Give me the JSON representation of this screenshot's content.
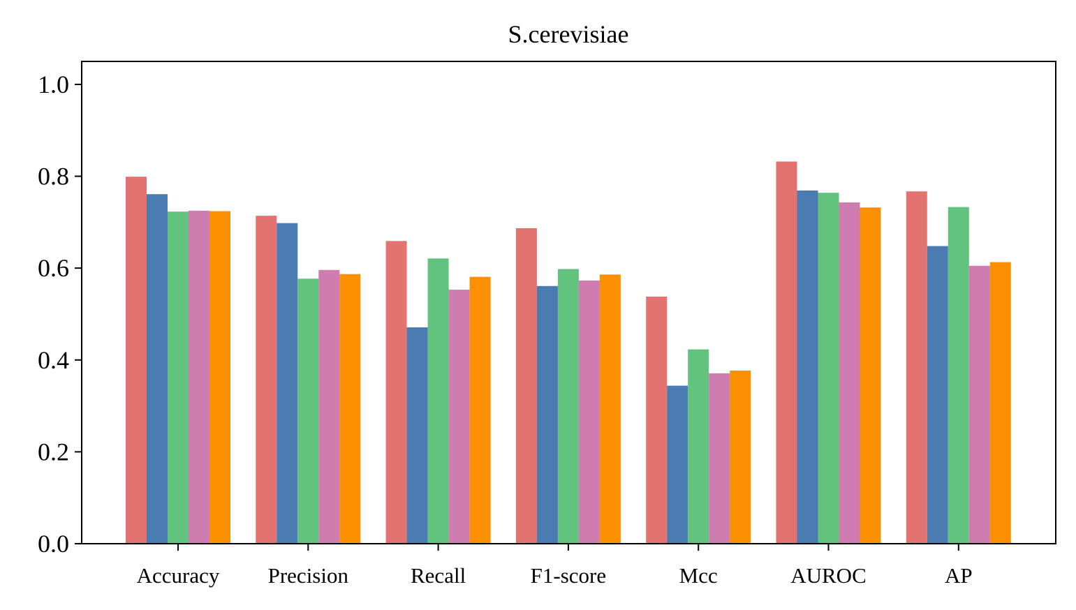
{
  "chart_data": {
    "type": "bar",
    "title": "S.cerevisiae",
    "xlabel": "",
    "ylabel": "",
    "categories": [
      "Accuracy",
      "Precision",
      "Recall",
      "F1-score",
      "Mcc",
      "AUROC",
      "AP"
    ],
    "ylim": [
      0,
      1.05
    ],
    "yticks": [
      0.0,
      0.2,
      0.4,
      0.6,
      0.8,
      1.0
    ],
    "ytick_labels": [
      "0.0",
      "0.2",
      "0.4",
      "0.6",
      "0.8",
      "1.0"
    ],
    "grid": false,
    "legend": "none",
    "series": [
      {
        "values": [
          0.799,
          0.714,
          0.659,
          0.687,
          0.538,
          0.832,
          0.767
        ],
        "color": "#e27370"
      },
      {
        "values": [
          0.761,
          0.698,
          0.471,
          0.561,
          0.344,
          0.769,
          0.648
        ],
        "color": "#4a7bb1"
      },
      {
        "values": [
          0.723,
          0.577,
          0.621,
          0.598,
          0.423,
          0.764,
          0.733
        ],
        "color": "#62c37f"
      },
      {
        "values": [
          0.725,
          0.596,
          0.553,
          0.573,
          0.371,
          0.743,
          0.605
        ],
        "color": "#cf7cb0"
      },
      {
        "values": [
          0.724,
          0.587,
          0.581,
          0.586,
          0.377,
          0.732,
          0.613
        ],
        "color": "#fb9102"
      }
    ]
  }
}
